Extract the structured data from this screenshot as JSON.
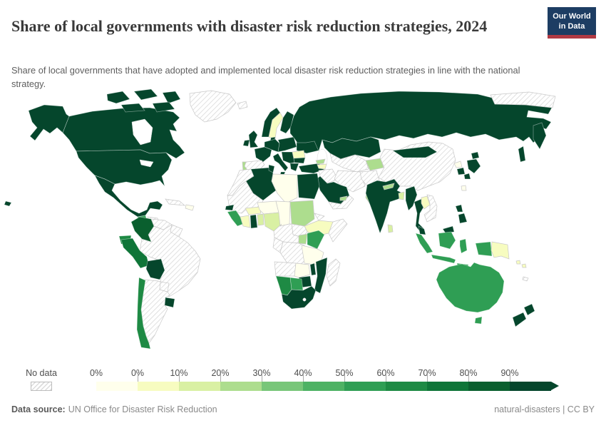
{
  "header": {
    "title": "Share of local governments with disaster risk reduction strategies, 2024",
    "logo": {
      "line1": "Our World",
      "line2": "in Data"
    }
  },
  "subtitle": "Share of local governments that have adopted and implemented local disaster risk reduction strategies in line with the national strategy.",
  "chart_data": {
    "type": "heatmap",
    "subtype": "choropleth-world-map",
    "title": "Share of local governments with disaster risk reduction strategies",
    "year": "2024",
    "unit": "% of local governments",
    "legend": {
      "no_data_label": "No data",
      "tick_labels": [
        "0%",
        "0%",
        "10%",
        "20%",
        "30%",
        "40%",
        "50%",
        "60%",
        "70%",
        "80%",
        "90%"
      ],
      "bin_colors": [
        "#ffffec",
        "#f7fcc0",
        "#d9f0a3",
        "#addd8e",
        "#78c679",
        "#4eb264",
        "#2f9e54",
        "#1e8a44",
        "#0f7538",
        "#0a5f2e",
        "#05462c"
      ]
    },
    "value_colors": {
      "0%": "#ffffec",
      "0-10%": "#f7fcc0",
      "10-20%": "#d9f0a3",
      "20-30%": "#addd8e",
      "30-40%": "#78c679",
      "40-50%": "#4eb264",
      "50-60%": "#2f9e54",
      "60-70%": "#1e8a44",
      "70-80%": "#0f7538",
      "80-90%": "#0a5f2e",
      "90-100%": "#05462c"
    },
    "countries": {
      "canada": {
        "label": "Canada",
        "value": "90-100%"
      },
      "united-states": {
        "label": "United States",
        "value": "90-100%"
      },
      "greenland": {
        "label": "Greenland",
        "value": "no-data"
      },
      "iceland": {
        "label": "Iceland",
        "value": "no-data"
      },
      "mexico": {
        "label": "Mexico",
        "value": "90-100%"
      },
      "guatemala": {
        "label": "Guatemala",
        "value": "50-60%"
      },
      "honduras-nicaragua": {
        "label": "Honduras / Nicaragua",
        "value": "no-data"
      },
      "costa-rica-panama": {
        "label": "Costa Rica / Panama",
        "value": "90-100%"
      },
      "cuba": {
        "label": "Cuba",
        "value": "no-data"
      },
      "hispaniola": {
        "label": "Haiti / Dominican Republic",
        "value": "0%"
      },
      "colombia": {
        "label": "Colombia",
        "value": "80-90%"
      },
      "venezuela": {
        "label": "Venezuela",
        "value": "no-data"
      },
      "guyanas": {
        "label": "Guyana / Suriname",
        "value": "no-data"
      },
      "ecuador": {
        "label": "Ecuador",
        "value": "60-70%"
      },
      "peru": {
        "label": "Peru",
        "value": "70-80%"
      },
      "brazil": {
        "label": "Brazil",
        "value": "no-data"
      },
      "bolivia": {
        "label": "Bolivia",
        "value": "90-100%"
      },
      "paraguay": {
        "label": "Paraguay",
        "value": "no-data"
      },
      "chile": {
        "label": "Chile",
        "value": "60-70%"
      },
      "argentina": {
        "label": "Argentina",
        "value": "no-data"
      },
      "uruguay": {
        "label": "Uruguay",
        "value": "90-100%"
      },
      "norway": {
        "label": "Norway",
        "value": "90-100%"
      },
      "sweden": {
        "label": "Sweden",
        "value": "0-10%"
      },
      "finland": {
        "label": "Finland",
        "value": "90-100%"
      },
      "denmark": {
        "label": "Denmark",
        "value": "90-100%"
      },
      "united-kingdom": {
        "label": "United Kingdom",
        "value": "90-100%"
      },
      "ireland": {
        "label": "Ireland",
        "value": "90-100%"
      },
      "france": {
        "label": "France",
        "value": "90-100%"
      },
      "spain": {
        "label": "Spain",
        "value": "no-data"
      },
      "portugal": {
        "label": "Portugal",
        "value": "20-30%"
      },
      "germany-central-europe": {
        "label": "Germany / Central Europe",
        "value": "90-100%"
      },
      "italy": {
        "label": "Italy",
        "value": "90-100%"
      },
      "poland-baltics": {
        "label": "Poland / Baltics / Belarus",
        "value": "90-100%"
      },
      "balkans-west": {
        "label": "Hungary / Western Balkans",
        "value": "90-100%"
      },
      "romania": {
        "label": "Romania",
        "value": "0-10%"
      },
      "bulgaria": {
        "label": "Bulgaria",
        "value": "90-100%"
      },
      "greece": {
        "label": "Greece",
        "value": "90-100%"
      },
      "ukraine": {
        "label": "Ukraine",
        "value": "90-100%"
      },
      "russia": {
        "label": "Russia",
        "value": "90-100%"
      },
      "arctic-islands": {
        "label": "Arctic islands",
        "value": "no-data"
      },
      "turkey": {
        "label": "Turkey",
        "value": "90-100%"
      },
      "georgia": {
        "label": "Georgia",
        "value": "20-30%"
      },
      "armenia-azerbaijan": {
        "label": "Armenia / Azerbaijan",
        "value": "0-10%"
      },
      "kazakhstan": {
        "label": "Kazakhstan",
        "value": "90-100%"
      },
      "uzbekistan-turkmenistan": {
        "label": "Uzbekistan / Turkmenistan",
        "value": "no-data"
      },
      "kyrgyzstan-tajikistan": {
        "label": "Kyrgyzstan / Tajikistan",
        "value": "20-30%"
      },
      "syria-iraq": {
        "label": "Syria / Iraq",
        "value": "no-data"
      },
      "iran": {
        "label": "Iran",
        "value": "no-data"
      },
      "afghanistan": {
        "label": "Afghanistan",
        "value": "no-data"
      },
      "pakistan": {
        "label": "Pakistan",
        "value": "20-30%"
      },
      "saudi-arabia": {
        "label": "Saudi Arabia",
        "value": "90-100%"
      },
      "yemen-oman": {
        "label": "Yemen / Oman",
        "value": "no-data"
      },
      "uae": {
        "label": "United Arab Emirates",
        "value": "20-30%"
      },
      "india": {
        "label": "India",
        "value": "90-100%"
      },
      "nepal": {
        "label": "Nepal",
        "value": "20-30%"
      },
      "bangladesh": {
        "label": "Bangladesh",
        "value": "10-20%"
      },
      "sri-lanka": {
        "label": "Sri Lanka",
        "value": "10-20%"
      },
      "china": {
        "label": "China",
        "value": "no-data"
      },
      "mongolia": {
        "label": "Mongolia",
        "value": "90-100%"
      },
      "north-korea": {
        "label": "North Korea",
        "value": "0%"
      },
      "south-korea": {
        "label": "South Korea",
        "value": "90-100%"
      },
      "japan": {
        "label": "Japan",
        "value": "90-100%"
      },
      "taiwan": {
        "label": "Taiwan",
        "value": "0%"
      },
      "myanmar": {
        "label": "Myanmar",
        "value": "90-100%"
      },
      "thailand": {
        "label": "Thailand",
        "value": "90-100%"
      },
      "laos": {
        "label": "Laos",
        "value": "0-10%"
      },
      "vietnam-cambodia": {
        "label": "Vietnam / Cambodia",
        "value": "no-data"
      },
      "malaysia": {
        "label": "Malaysia",
        "value": "90-100%"
      },
      "philippines": {
        "label": "Philippines",
        "value": "90-100%"
      },
      "indonesia": {
        "label": "Indonesia",
        "value": "50-60%"
      },
      "papua-new-guinea": {
        "label": "Papua New Guinea",
        "value": "0-10%"
      },
      "solomon-islands": {
        "label": "Solomon Islands",
        "value": "0-10%"
      },
      "new-caledonia": {
        "label": "New Caledonia",
        "value": "no-data"
      },
      "australia": {
        "label": "Australia",
        "value": "50-60%"
      },
      "new-zealand": {
        "label": "New Zealand",
        "value": "90-100%"
      },
      "morocco-western-sahara": {
        "label": "Morocco / Western Sahara",
        "value": "no-data"
      },
      "algeria": {
        "label": "Algeria",
        "value": "90-100%"
      },
      "tunisia": {
        "label": "Tunisia",
        "value": "90-100%"
      },
      "libya": {
        "label": "Libya",
        "value": "0%"
      },
      "egypt": {
        "label": "Egypt",
        "value": "90-100%"
      },
      "mauritania-mali": {
        "label": "Mauritania / Mali",
        "value": "no-data"
      },
      "senegal": {
        "label": "Senegal",
        "value": "90-100%"
      },
      "guinea-region": {
        "label": "Guinea / Sierra Leone / Liberia",
        "value": "50-60%"
      },
      "cote-divoire": {
        "label": "Côte d'Ivoire",
        "value": "0-10%"
      },
      "ghana": {
        "label": "Ghana",
        "value": "90-100%"
      },
      "togo-benin": {
        "label": "Togo / Benin",
        "value": "10-20%"
      },
      "burkina-faso": {
        "label": "Burkina Faso",
        "value": "0-10%"
      },
      "niger": {
        "label": "Niger",
        "value": "0%"
      },
      "nigeria": {
        "label": "Nigeria",
        "value": "10-20%"
      },
      "chad": {
        "label": "Chad",
        "value": "0%"
      },
      "sudan": {
        "label": "Sudan",
        "value": "20-30%"
      },
      "eritrea-djibouti": {
        "label": "Eritrea / Djibouti",
        "value": "no-data"
      },
      "ethiopia": {
        "label": "Ethiopia",
        "value": "0-10%"
      },
      "somalia": {
        "label": "Somalia",
        "value": "no-data"
      },
      "south-sudan": {
        "label": "South Sudan",
        "value": "no-data"
      },
      "cameroon-car": {
        "label": "Cameroon / Central African Republic",
        "value": "no-data"
      },
      "gabon-congo": {
        "label": "Gabon / Congo",
        "value": "no-data"
      },
      "dr-congo": {
        "label": "Democratic Republic of Congo",
        "value": "no-data"
      },
      "uganda": {
        "label": "Uganda",
        "value": "20-30%"
      },
      "kenya": {
        "label": "Kenya",
        "value": "50-60%"
      },
      "tanzania": {
        "label": "Tanzania",
        "value": "0%"
      },
      "angola": {
        "label": "Angola",
        "value": "no-data"
      },
      "zambia": {
        "label": "Zambia",
        "value": "0%"
      },
      "malawi": {
        "label": "Malawi",
        "value": "90-100%"
      },
      "mozambique": {
        "label": "Mozambique",
        "value": "90-100%"
      },
      "zimbabwe": {
        "label": "Zimbabwe",
        "value": "90-100%"
      },
      "botswana": {
        "label": "Botswana",
        "value": "50-60%"
      },
      "namibia": {
        "label": "Namibia",
        "value": "60-70%"
      },
      "south-africa": {
        "label": "South Africa",
        "value": "90-100%"
      },
      "madagascar": {
        "label": "Madagascar",
        "value": "no-data"
      }
    }
  },
  "footer": {
    "data_source_label": "Data source:",
    "data_source_value": "UN Office for Disaster Risk Reduction",
    "right_text": "natural-disasters | CC BY"
  }
}
